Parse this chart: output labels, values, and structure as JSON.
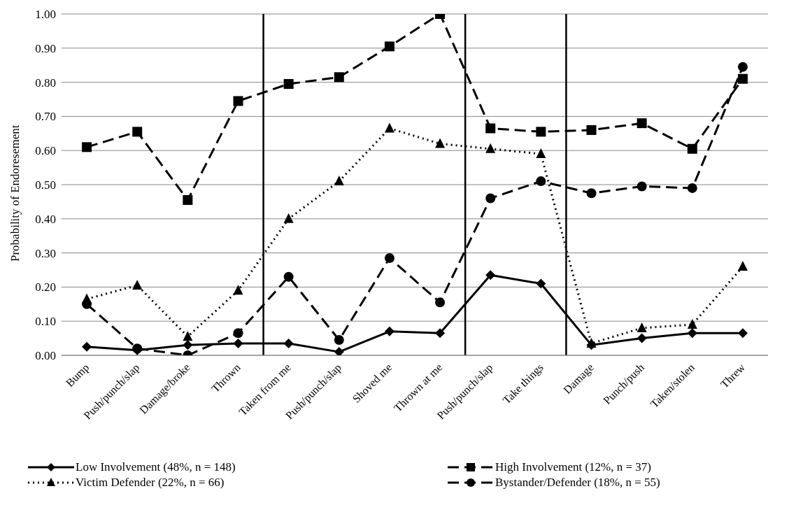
{
  "chart_data": {
    "type": "line",
    "ylabel": "Probability of Endoresement",
    "categories": [
      "Bump",
      "Push/punch/slap",
      "Damage/broke",
      "Thrown",
      "Taken from me",
      "Push/punch/slap",
      "Shoved me",
      "Thrown at me",
      "Push/punch/slap",
      "Take things",
      "Damage",
      "Punch/push",
      "Taken/stolen",
      "Threw"
    ],
    "series": [
      {
        "name": "Low Involvement (48%, n = 148)",
        "color": "#000000",
        "marker": "diamond",
        "line_style": "solid",
        "values": [
          0.025,
          0.015,
          0.03,
          0.035,
          0.035,
          0.01,
          0.07,
          0.065,
          0.235,
          0.21,
          0.03,
          0.05,
          0.065,
          0.065
        ]
      },
      {
        "name": "High Involvement (12%, n = 37)",
        "color": "#000000",
        "marker": "square",
        "line_style": "dashed",
        "values": [
          0.61,
          0.655,
          0.455,
          0.745,
          0.795,
          0.815,
          0.905,
          1.0,
          0.665,
          0.655,
          0.66,
          0.68,
          0.605,
          0.81
        ]
      },
      {
        "name": "Victim Defender (22%, n = 66)",
        "color": "#000000",
        "marker": "triangle",
        "line_style": "dotted",
        "values": [
          0.165,
          0.205,
          0.055,
          0.19,
          0.4,
          0.51,
          0.665,
          0.62,
          0.605,
          0.59,
          0.035,
          0.08,
          0.09,
          0.26
        ]
      },
      {
        "name": "Bystander/Defender (18%, n = 55)",
        "color": "#000000",
        "marker": "circle",
        "line_style": "dashed",
        "values": [
          0.15,
          0.02,
          0.0,
          0.065,
          0.23,
          0.045,
          0.285,
          0.155,
          0.46,
          0.51,
          0.475,
          0.495,
          0.49,
          0.845
        ]
      }
    ],
    "ylim": [
      0,
      1
    ],
    "yticks": [
      {
        "value": 0,
        "label": "0.00"
      },
      {
        "value": 0.1,
        "label": "0.10"
      },
      {
        "value": 0.2,
        "label": "0.20"
      },
      {
        "value": 0.3,
        "label": "0.30"
      },
      {
        "value": 0.4,
        "label": "0.40"
      },
      {
        "value": 0.5,
        "label": "0.50"
      },
      {
        "value": 0.6,
        "label": "0.60"
      },
      {
        "value": 0.7,
        "label": "0.70"
      },
      {
        "value": 0.8,
        "label": "0.80"
      },
      {
        "value": 0.9,
        "label": "0.90"
      },
      {
        "value": 1,
        "label": "1.00"
      }
    ],
    "grid": "y",
    "legend": "bottom"
  }
}
